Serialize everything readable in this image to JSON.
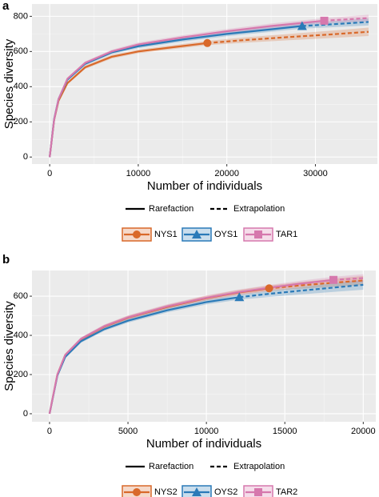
{
  "chart_data": [
    {
      "type": "line",
      "panel": "a",
      "x_label": "Number of individuals",
      "y_label": "Species diversity",
      "line_legend": [
        "Rarefaction",
        "Extrapolation"
      ],
      "xlim": [
        -2000,
        37000
      ],
      "ylim": [
        -40,
        870
      ],
      "xticks": [
        0,
        10000,
        20000,
        30000
      ],
      "yticks": [
        0,
        200,
        400,
        600,
        800
      ],
      "grid": true,
      "series": [
        {
          "name": "NYS1",
          "color": "#d9692a",
          "marker": "circle",
          "observed_index": 8,
          "x": [
            0,
            500,
            1000,
            2000,
            4000,
            7000,
            10000,
            14000,
            17800,
            22000,
            27000,
            32000,
            36000
          ],
          "values": [
            0,
            210,
            320,
            420,
            510,
            570,
            600,
            625,
            648,
            665,
            682,
            698,
            712
          ],
          "lower": [
            0,
            205,
            313,
            412,
            501,
            560,
            590,
            614,
            636,
            650,
            664,
            677,
            688
          ],
          "upper": [
            0,
            215,
            327,
            428,
            519,
            580,
            610,
            636,
            660,
            680,
            700,
            719,
            736
          ]
        },
        {
          "name": "OYS1",
          "color": "#2a7ab8",
          "marker": "triangle",
          "observed_index": 10,
          "x": [
            0,
            500,
            1000,
            2000,
            4000,
            7000,
            10000,
            15000,
            20000,
            25000,
            28500,
            32000,
            36000
          ],
          "values": [
            0,
            215,
            330,
            440,
            530,
            595,
            630,
            668,
            700,
            726,
            745,
            755,
            768
          ],
          "lower": [
            0,
            210,
            323,
            432,
            521,
            585,
            619,
            656,
            687,
            712,
            730,
            738,
            748
          ],
          "upper": [
            0,
            220,
            337,
            448,
            539,
            605,
            641,
            680,
            713,
            740,
            760,
            772,
            788
          ]
        },
        {
          "name": "TAR1",
          "color": "#d678ad",
          "marker": "square",
          "observed_index": 10,
          "x": [
            0,
            500,
            1000,
            2000,
            4000,
            7000,
            10000,
            15000,
            20000,
            25000,
            31000,
            34000,
            36000
          ],
          "values": [
            0,
            212,
            330,
            445,
            535,
            600,
            640,
            680,
            715,
            745,
            775,
            784,
            790
          ],
          "lower": [
            0,
            207,
            323,
            437,
            526,
            590,
            629,
            668,
            702,
            731,
            760,
            767,
            771
          ],
          "upper": [
            0,
            217,
            337,
            453,
            544,
            610,
            651,
            692,
            728,
            759,
            790,
            801,
            809
          ]
        }
      ]
    },
    {
      "type": "line",
      "panel": "b",
      "x_label": "Number of individuals",
      "y_label": "Species diversity",
      "line_legend": [
        "Rarefaction",
        "Extrapolation"
      ],
      "xlim": [
        -1120,
        20800
      ],
      "ylim": [
        -41,
        731
      ],
      "xticks": [
        0,
        5000,
        10000,
        15000,
        20000
      ],
      "yticks": [
        0,
        200,
        400,
        600
      ],
      "grid": true,
      "series": [
        {
          "name": "NYS2",
          "color": "#d9692a",
          "marker": "circle",
          "observed_index": 9,
          "x": [
            0,
            500,
            1000,
            2000,
            3500,
            5000,
            7500,
            10000,
            12000,
            14000,
            16000,
            18000,
            20000
          ],
          "values": [
            0,
            200,
            300,
            380,
            445,
            490,
            545,
            590,
            618,
            640,
            655,
            668,
            680
          ],
          "lower": [
            0,
            195,
            293,
            372,
            436,
            480,
            534,
            578,
            605,
            626,
            638,
            648,
            657
          ],
          "upper": [
            0,
            205,
            307,
            388,
            454,
            500,
            556,
            602,
            631,
            654,
            672,
            688,
            703
          ]
        },
        {
          "name": "OYS2",
          "color": "#2a7ab8",
          "marker": "triangle",
          "observed_index": 8,
          "x": [
            0,
            500,
            1000,
            2000,
            3500,
            5000,
            7500,
            10000,
            12100,
            14000,
            16000,
            18000,
            20000
          ],
          "values": [
            0,
            195,
            290,
            370,
            432,
            475,
            528,
            570,
            595,
            612,
            628,
            643,
            658
          ],
          "lower": [
            0,
            190,
            283,
            362,
            423,
            465,
            517,
            558,
            582,
            596,
            609,
            621,
            633
          ],
          "upper": [
            0,
            200,
            297,
            378,
            441,
            485,
            539,
            582,
            608,
            628,
            647,
            665,
            683
          ]
        },
        {
          "name": "TAR2",
          "color": "#d678ad",
          "marker": "square",
          "observed_index": 11,
          "x": [
            0,
            500,
            1000,
            2000,
            3500,
            5000,
            7500,
            10000,
            12000,
            14000,
            16000,
            18100,
            20000
          ],
          "values": [
            0,
            200,
            300,
            382,
            447,
            492,
            548,
            592,
            620,
            643,
            664,
            683,
            692
          ],
          "lower": [
            0,
            195,
            293,
            374,
            438,
            482,
            537,
            580,
            607,
            629,
            649,
            667,
            672
          ],
          "upper": [
            0,
            205,
            307,
            390,
            456,
            502,
            559,
            604,
            633,
            657,
            679,
            699,
            712
          ]
        }
      ]
    }
  ]
}
